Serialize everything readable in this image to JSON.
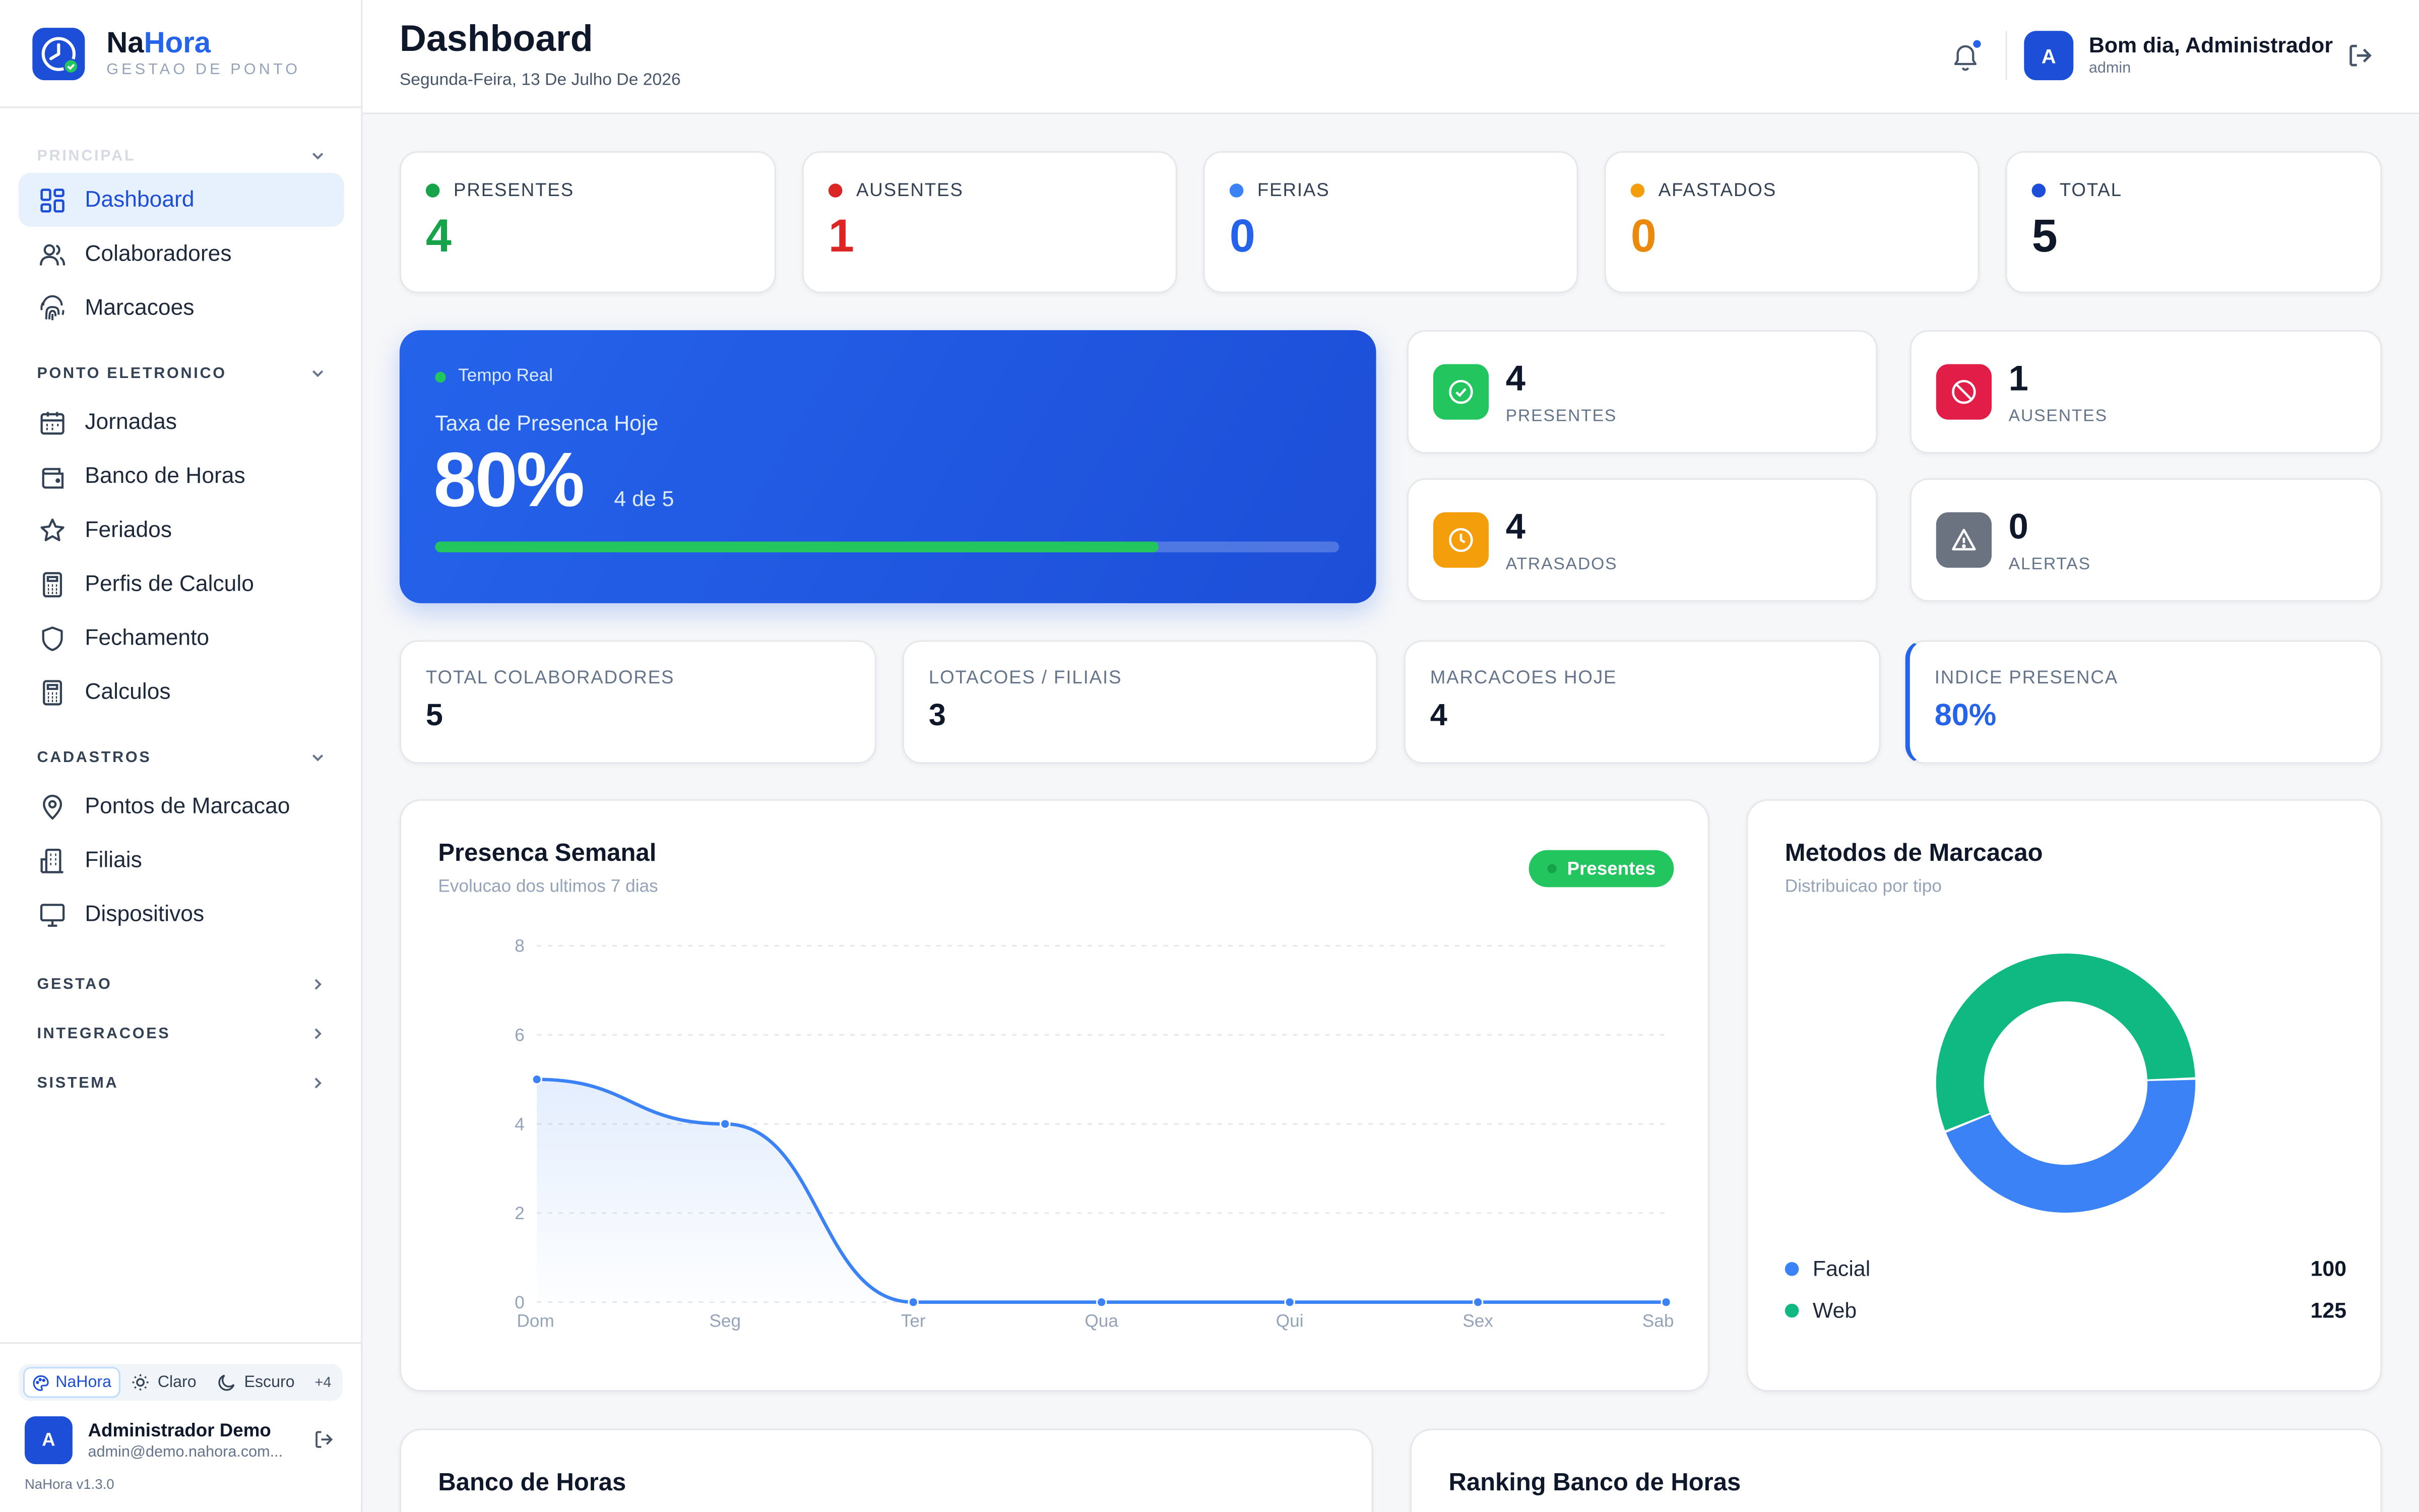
{
  "brand": {
    "name_part1": "Na",
    "name_part2": "Hora",
    "subtitle": "GESTAO DE PONTO"
  },
  "sidebar": {
    "sections": [
      {
        "label": "PRINCIPAL",
        "items": [
          "Dashboard",
          "Colaboradores",
          "Marcacoes"
        ]
      },
      {
        "label": "PONTO ELETRONICO",
        "items": [
          "Jornadas",
          "Banco de Horas",
          "Feriados",
          "Perfis de Calculo",
          "Fechamento",
          "Calculos"
        ]
      },
      {
        "label": "CADASTROS",
        "items": [
          "Pontos de Marcacao",
          "Filiais",
          "Dispositivos"
        ]
      },
      {
        "label": "GESTAO",
        "items": []
      },
      {
        "label": "INTEGRACOES",
        "items": []
      },
      {
        "label": "SISTEMA",
        "items": []
      }
    ],
    "active_item": "Dashboard",
    "themes": [
      "NaHora",
      "Claro",
      "Escuro"
    ],
    "themes_more": "+4",
    "user": {
      "initial": "A",
      "name": "Administrador Demo",
      "email": "admin@demo.nahora.com..."
    },
    "version": "NaHora v1.3.0"
  },
  "header": {
    "title": "Dashboard",
    "date": "Segunda-Feira, 13 De Julho De 2026",
    "greeting": "Bom dia, Administrador",
    "role": "admin",
    "avatar_initial": "A"
  },
  "stats": [
    {
      "label": "PRESENTES",
      "value": "4",
      "color": "#16a34a"
    },
    {
      "label": "AUSENTES",
      "value": "1",
      "color": "#dc2626"
    },
    {
      "label": "FERIAS",
      "value": "0",
      "color": "#2563eb"
    },
    {
      "label": "AFASTADOS",
      "value": "0",
      "color": "#ea8a0c"
    },
    {
      "label": "TOTAL",
      "value": "5",
      "color": "#0f172a"
    }
  ],
  "hero": {
    "tag": "Tempo Real",
    "title": "Taxa de Presenca Hoje",
    "value": "80%",
    "sub": "4 de 5",
    "progress": 0.8
  },
  "mini": [
    {
      "value": "4",
      "label": "PRESENTES",
      "color": "#22c55e",
      "icon": "check-circle-icon"
    },
    {
      "value": "1",
      "label": "AUSENTES",
      "color": "#e11d48",
      "icon": "ban-icon"
    },
    {
      "value": "4",
      "label": "ATRASADOS",
      "color": "#f59e0b",
      "icon": "clock-icon"
    },
    {
      "value": "0",
      "label": "ALERTAS",
      "color": "#6b7280",
      "icon": "warning-icon"
    }
  ],
  "kpis": [
    {
      "label": "TOTAL COLABORADORES",
      "value": "5"
    },
    {
      "label": "LOTACOES / FILIAIS",
      "value": "3"
    },
    {
      "label": "MARCACOES HOJE",
      "value": "4"
    },
    {
      "label": "INDICE PRESENCA",
      "value": "80%"
    }
  ],
  "weekly": {
    "title": "Presenca Semanal",
    "subtitle": "Evolucao dos ultimos 7 dias",
    "badge": "Presentes"
  },
  "methods": {
    "title": "Metodos de Marcacao",
    "subtitle": "Distribuicao por tipo"
  },
  "bottom": {
    "left_title": "Banco de Horas",
    "right_title": "Ranking Banco de Horas"
  },
  "chart_data": [
    {
      "type": "area",
      "title": "Presenca Semanal",
      "categories": [
        "Dom",
        "Seg",
        "Ter",
        "Qua",
        "Qui",
        "Sex",
        "Sab"
      ],
      "series": [
        {
          "name": "Presentes",
          "values": [
            5,
            4,
            0,
            0,
            0,
            0,
            0
          ]
        }
      ],
      "ylim": [
        0,
        8
      ],
      "yticks": [
        0,
        2,
        4,
        6,
        8
      ],
      "grid": true,
      "color": "#3b82f6"
    },
    {
      "type": "pie",
      "title": "Metodos de Marcacao",
      "labels": [
        "Facial",
        "Web"
      ],
      "values": [
        100,
        125
      ],
      "colors": [
        "#3b82f6",
        "#10b981"
      ],
      "legend": "bottom"
    }
  ]
}
